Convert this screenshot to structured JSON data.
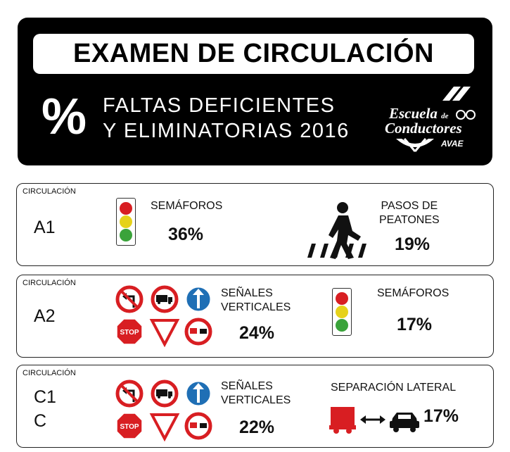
{
  "header": {
    "title": "EXAMEN DE CIRCULACIÓN",
    "percent_symbol": "%",
    "subtitle_line1": "FALTAS DEFICIENTES",
    "subtitle_line2": "Y ELIMINATORIAS 2016",
    "logo_word1": "Escuela",
    "logo_de": "de",
    "logo_word2": "Conductores",
    "logo_brand": "AVAE"
  },
  "rows": [
    {
      "category_label": "CIRCULACIÓN",
      "category": "A1",
      "item1_label": "SEMÁFOROS",
      "item1_value": "36%",
      "item2_label_line1": "PASOS DE",
      "item2_label_line2": "PEATONES",
      "item2_value": "19%"
    },
    {
      "category_label": "CIRCULACIÓN",
      "category": "A2",
      "item1_label_line1": "SEÑALES",
      "item1_label_line2": "VERTICALES",
      "item1_value": "24%",
      "item2_label": "SEMÁFOROS",
      "item2_value": "17%"
    },
    {
      "category_label": "CIRCULACIÓN",
      "category_line1": "C1",
      "category_line2": "C",
      "item1_label_line1": "SEÑALES",
      "item1_label_line2": "VERTICALES",
      "item1_value": "22%",
      "item2_label": "SEPARACIÓN LATERAL",
      "item2_value": "17%"
    }
  ],
  "sign_text": {
    "stop": "STOP"
  },
  "colors": {
    "red": "#d81e22",
    "yellow": "#e6d21a",
    "green": "#3aa33a",
    "blue": "#1f6fb5",
    "black": "#000000"
  },
  "icons": [
    "traffic-light-icon",
    "pedestrian-crossing-icon",
    "no-left-turn-sign-icon",
    "no-trucks-sign-icon",
    "ahead-only-sign-icon",
    "stop-sign-icon",
    "yield-sign-icon",
    "no-overtaking-trucks-sign-icon",
    "truck-icon",
    "double-arrow-icon",
    "car-icon"
  ]
}
